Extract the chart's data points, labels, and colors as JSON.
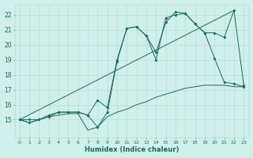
{
  "background_color": "#cff0ea",
  "grid_color": "#b8ddd8",
  "line_color": "#1a6b5a",
  "xlabel": "Humidex (Indice chaleur)",
  "xlim": [
    -0.5,
    23.5
  ],
  "ylim": [
    13.8,
    22.7
  ],
  "yticks": [
    15,
    16,
    17,
    18,
    19,
    20,
    21,
    22
  ],
  "xticks": [
    0,
    1,
    2,
    3,
    4,
    5,
    6,
    7,
    8,
    9,
    10,
    11,
    12,
    13,
    14,
    15,
    16,
    17,
    18,
    19,
    20,
    21,
    22,
    23
  ],
  "series1_x": [
    0,
    1,
    2,
    3,
    4,
    5,
    6,
    7,
    8,
    9,
    10,
    11,
    12,
    13,
    14,
    15,
    16,
    17,
    18,
    19,
    20,
    21,
    22,
    23
  ],
  "series1_y": [
    15.0,
    14.8,
    15.0,
    15.2,
    15.3,
    15.4,
    15.4,
    14.3,
    14.5,
    15.2,
    15.5,
    15.7,
    16.0,
    16.2,
    16.5,
    16.7,
    16.9,
    17.1,
    17.2,
    17.3,
    17.3,
    17.3,
    17.2,
    17.2
  ],
  "series2_x": [
    0,
    1,
    2,
    3,
    4,
    5,
    6,
    7,
    8,
    9,
    10,
    11,
    12,
    13,
    14,
    15,
    16,
    17,
    18,
    19,
    20,
    21,
    22,
    23
  ],
  "series2_y": [
    15.0,
    14.8,
    15.0,
    15.3,
    15.5,
    15.5,
    15.5,
    15.3,
    14.5,
    15.5,
    18.9,
    21.1,
    21.2,
    20.6,
    19.0,
    21.8,
    22.0,
    22.1,
    21.4,
    20.8,
    19.1,
    17.5,
    17.4,
    17.2
  ],
  "series3_x": [
    0,
    22
  ],
  "series3_y": [
    15.0,
    22.3
  ],
  "series4_x": [
    0,
    1,
    2,
    3,
    4,
    5,
    6,
    7,
    8,
    9,
    10,
    11,
    12,
    13,
    14,
    15,
    16,
    17,
    18,
    19,
    20,
    21,
    22,
    23
  ],
  "series4_y": [
    15.0,
    15.0,
    15.0,
    15.2,
    15.5,
    15.5,
    15.5,
    15.3,
    16.3,
    15.8,
    19.0,
    21.1,
    21.2,
    20.6,
    19.5,
    21.5,
    22.2,
    22.1,
    21.4,
    20.8,
    20.8,
    20.5,
    22.3,
    17.3
  ]
}
